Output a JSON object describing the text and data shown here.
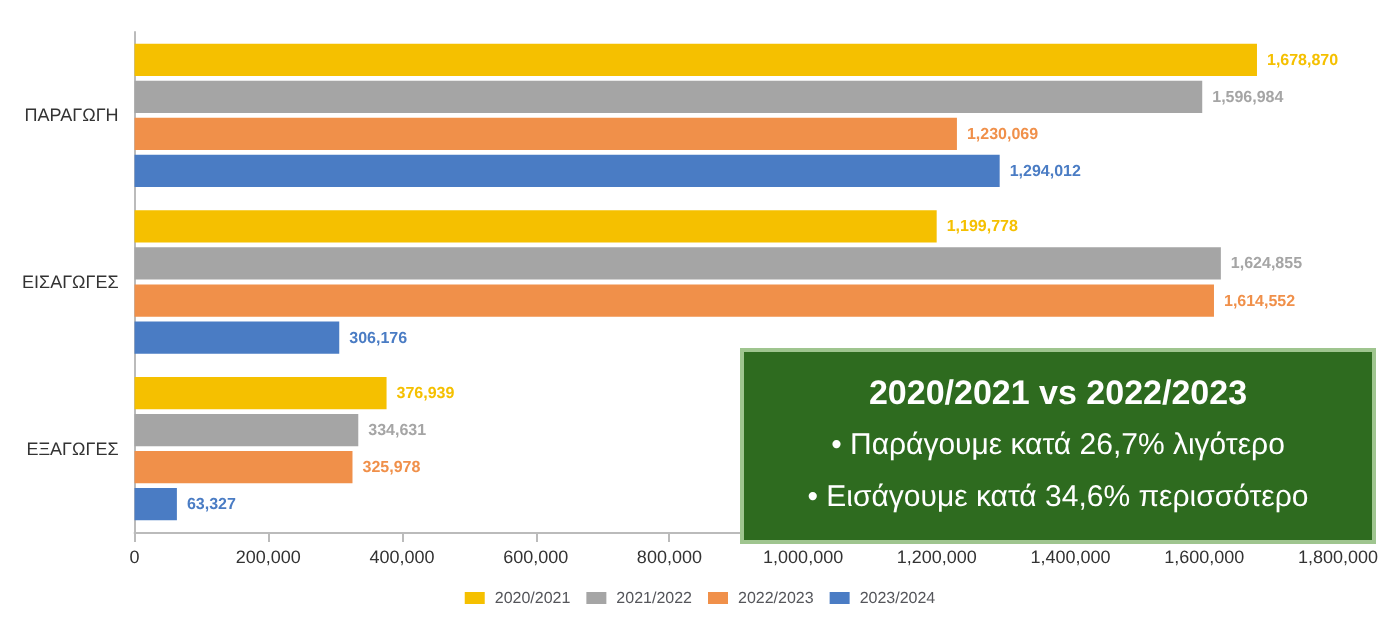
{
  "chart_data": {
    "type": "bar",
    "orientation": "horizontal",
    "categories": [
      "ΠΑΡΑΓΩΓΗ",
      "ΕΙΣΑΓΩΓΕΣ",
      "ΕΞΑΓΩΓΕΣ"
    ],
    "series": [
      {
        "name": "2020/2021",
        "color": "#f5c000",
        "values": [
          1678870,
          1199778,
          376939
        ],
        "value_labels": [
          "1,678,870",
          "1,199,778",
          "376,939"
        ]
      },
      {
        "name": "2021/2022",
        "color": "#a5a5a5",
        "values": [
          1596984,
          1624855,
          334631
        ],
        "value_labels": [
          "1,596,984",
          "1,624,855",
          "334,631"
        ]
      },
      {
        "name": "2022/2023",
        "color": "#f0904a",
        "values": [
          1230069,
          1614552,
          325978
        ],
        "value_labels": [
          "1,230,069",
          "1,614,552",
          "325,978"
        ]
      },
      {
        "name": "2023/2024",
        "color": "#4a7cc4",
        "values": [
          1294012,
          306176,
          63327
        ],
        "value_labels": [
          "1,294,012",
          "306,176",
          "63,327"
        ]
      }
    ],
    "xlim": [
      0,
      1800000
    ],
    "xticks": [
      0,
      {
        "value": 200000,
        "label": "200,000"
      },
      {
        "value": 400000,
        "label": "400,000"
      },
      {
        "value": 600000,
        "label": "600,000"
      },
      {
        "value": 800000,
        "label": "800,000"
      },
      {
        "value": 1000000,
        "label": "1,000,000"
      },
      {
        "value": 1200000,
        "label": "1,200,000"
      },
      {
        "value": 1400000,
        "label": "1,400,000"
      },
      {
        "value": 1600000,
        "label": "1,600,000"
      },
      {
        "value": 1800000,
        "label": "1,800,000"
      }
    ],
    "legend": "bottom",
    "grid": false,
    "annotations": [
      "2020/2021 vs 2022/2023",
      "• Παράγουμε κατά 26,7% λιγότερο",
      "• Εισάγουμε κατά 34,6% περισσότερο"
    ]
  }
}
